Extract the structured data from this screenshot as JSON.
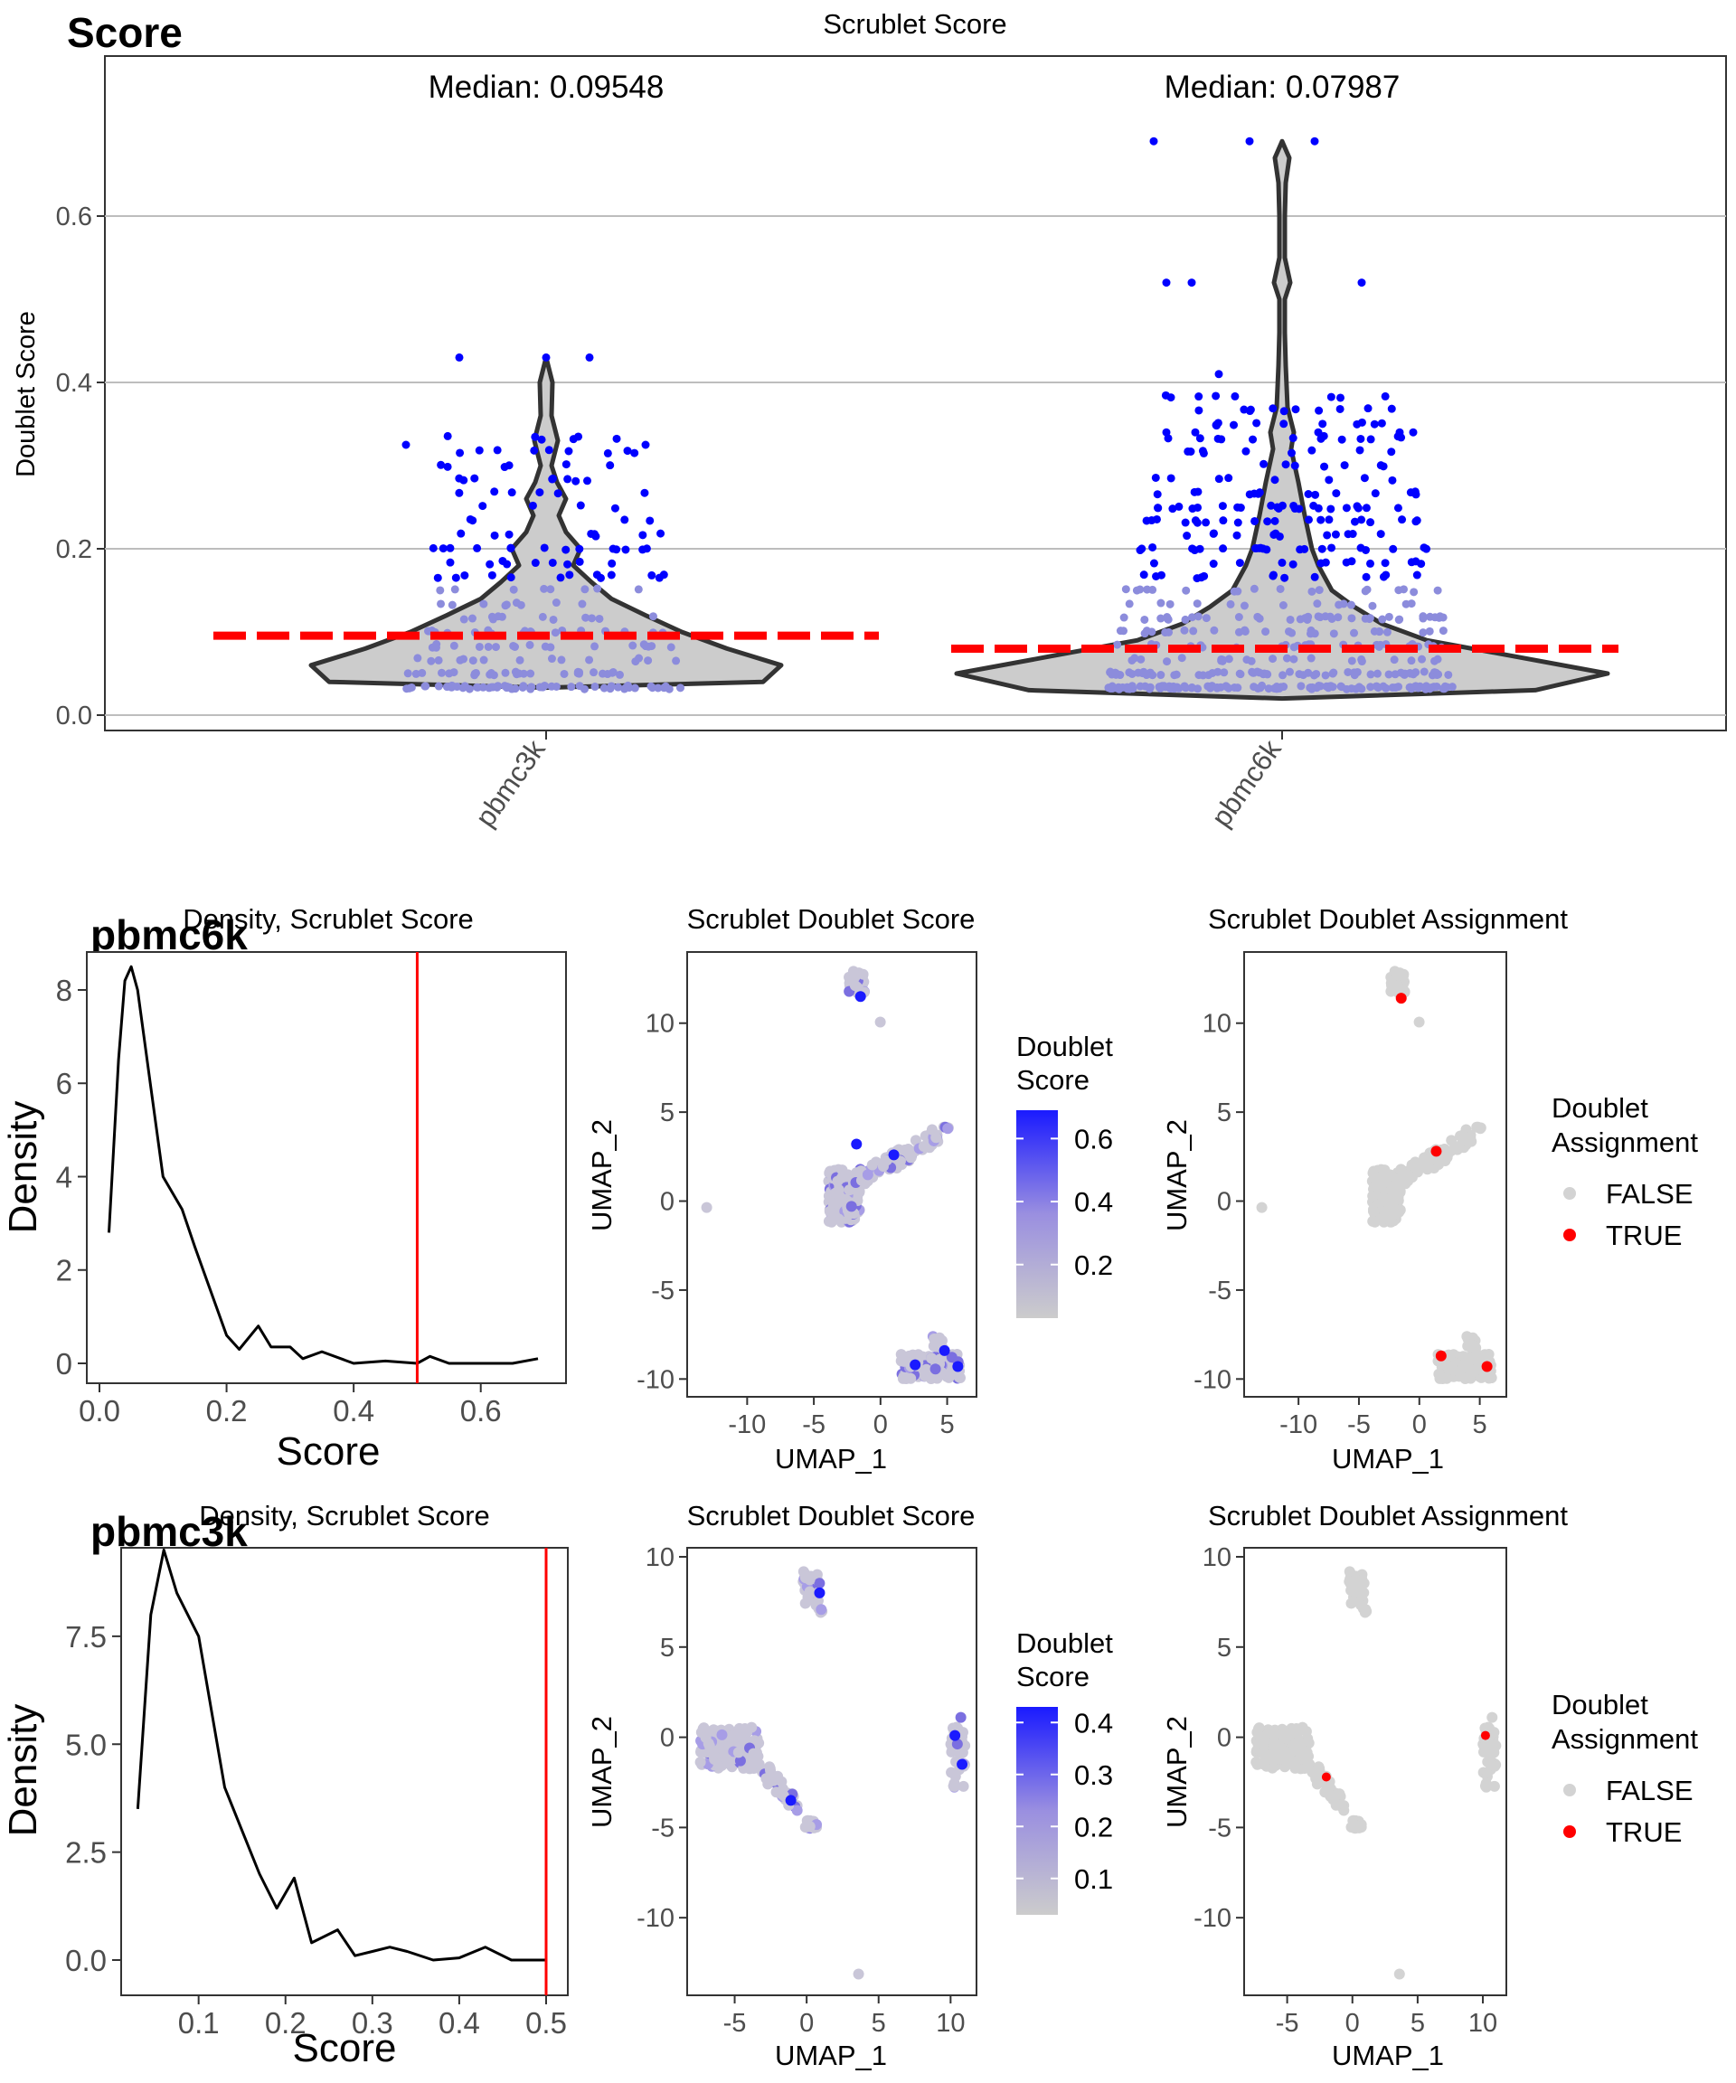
{
  "violin": {
    "tag": "Score",
    "title": "Scrublet Score",
    "ylabel": "Doublet Score",
    "ylim": [
      0,
      0.7
    ],
    "yticks": [
      "0.0",
      "0.2",
      "0.4",
      "0.6"
    ],
    "ytick_values": [
      0.0,
      0.2,
      0.4,
      0.6
    ],
    "groups": [
      "pbmc3k",
      "pbmc6k"
    ],
    "medians": [
      0.09548,
      0.07987
    ],
    "median_labels": [
      "Median: 0.09548",
      "Median: 0.07987"
    ],
    "max_values": [
      0.43,
      0.69
    ]
  },
  "rows": [
    {
      "tag": "pbmc6k",
      "density": {
        "title": "Density, Scrublet Score",
        "xlabel": "Score",
        "ylabel": "Density",
        "xticks": [
          "0.0",
          "0.2",
          "0.4",
          "0.6"
        ],
        "xtick_values": [
          0.0,
          0.2,
          0.4,
          0.6
        ],
        "yticks": [
          "0",
          "2",
          "4",
          "6",
          "8"
        ],
        "ytick_values": [
          0,
          2,
          4,
          6,
          8
        ],
        "threshold": 0.5
      },
      "umap_score": {
        "title": "Scrublet Doublet Score",
        "xlabel": "UMAP_1",
        "ylabel": "UMAP_2",
        "xticks": [
          "-10",
          "-5",
          "0",
          "5"
        ],
        "yticks": [
          "-10",
          "-5",
          "0",
          "5",
          "10"
        ],
        "legend_title_1": "Doublet",
        "legend_title_2": "Score",
        "legend_ticks": [
          "0.6",
          "0.4",
          "0.2"
        ]
      },
      "umap_assign": {
        "title": "Scrublet Doublet Assignment",
        "xlabel": "UMAP_1",
        "ylabel": "UMAP_2",
        "xticks": [
          "-10",
          "-5",
          "0",
          "5"
        ],
        "yticks": [
          "-10",
          "-5",
          "0",
          "5",
          "10"
        ],
        "legend_title_1": "Doublet",
        "legend_title_2": "Assignment",
        "legend_items": [
          "FALSE",
          "TRUE"
        ]
      }
    },
    {
      "tag": "pbmc3k",
      "density": {
        "title": "Density, Scrublet Score",
        "xlabel": "Score",
        "ylabel": "Density",
        "xticks": [
          "0.1",
          "0.2",
          "0.3",
          "0.4",
          "0.5"
        ],
        "xtick_values": [
          0.1,
          0.2,
          0.3,
          0.4,
          0.5
        ],
        "yticks": [
          "0.0",
          "2.5",
          "5.0",
          "7.5"
        ],
        "ytick_values": [
          0,
          2.5,
          5.0,
          7.5
        ],
        "threshold": 0.5
      },
      "umap_score": {
        "title": "Scrublet Doublet Score",
        "xlabel": "UMAP_1",
        "ylabel": "UMAP_2",
        "xticks": [
          "-5",
          "0",
          "5",
          "10"
        ],
        "yticks": [
          "-10",
          "-5",
          "0",
          "5",
          "10"
        ],
        "legend_title_1": "Doublet",
        "legend_title_2": "Score",
        "legend_ticks": [
          "0.4",
          "0.3",
          "0.2",
          "0.1"
        ]
      },
      "umap_assign": {
        "title": "Scrublet Doublet Assignment",
        "xlabel": "UMAP_1",
        "ylabel": "UMAP_2",
        "xticks": [
          "-5",
          "0",
          "5",
          "10"
        ],
        "yticks": [
          "-10",
          "-5",
          "0",
          "5",
          "10"
        ],
        "legend_title_1": "Doublet",
        "legend_title_2": "Assignment",
        "legend_items": [
          "FALSE",
          "TRUE"
        ]
      }
    }
  ],
  "colors": {
    "violin_fill": "#cccccc",
    "violin_stroke": "#333333",
    "median_line": "#ff0000",
    "high_point": "#0000ff",
    "low_point": "#8c8cdc",
    "gradient_high": "#1a1aff",
    "gradient_low": "#cccccc",
    "true_color": "#ff0000",
    "false_color": "#d3d3d3",
    "threshold_line": "#ff0000"
  },
  "chart_data": [
    {
      "type": "violin",
      "title": "Scrublet Score",
      "ylabel": "Doublet Score",
      "categories": [
        "pbmc3k",
        "pbmc6k"
      ],
      "medians": [
        0.09548,
        0.07987
      ],
      "ylim": [
        0,
        0.7
      ],
      "grid": true
    },
    {
      "type": "line",
      "title": "Density, Scrublet Score",
      "xlabel": "Score",
      "ylabel": "Density",
      "x": [
        0.015,
        0.03,
        0.04,
        0.05,
        0.06,
        0.08,
        0.1,
        0.13,
        0.15,
        0.2,
        0.22,
        0.25,
        0.27,
        0.3,
        0.32,
        0.35,
        0.4,
        0.45,
        0.5,
        0.52,
        0.55,
        0.6,
        0.65,
        0.69
      ],
      "y": [
        2.8,
        6.5,
        8.2,
        8.5,
        8.0,
        6.0,
        4.0,
        3.3,
        2.5,
        0.6,
        0.3,
        0.8,
        0.35,
        0.35,
        0.1,
        0.25,
        0.0,
        0.05,
        0.0,
        0.15,
        0.0,
        0.0,
        0.0,
        0.1
      ],
      "threshold": 0.5,
      "xlim": [
        0.0,
        0.7
      ],
      "ylim": [
        0,
        8.5
      ]
    },
    {
      "type": "line",
      "title": "Density, Scrublet Score",
      "xlabel": "Score",
      "ylabel": "Density",
      "x": [
        0.03,
        0.045,
        0.06,
        0.075,
        0.1,
        0.13,
        0.15,
        0.17,
        0.19,
        0.21,
        0.23,
        0.25,
        0.26,
        0.28,
        0.3,
        0.32,
        0.34,
        0.37,
        0.4,
        0.43,
        0.46,
        0.5
      ],
      "y": [
        3.5,
        8.0,
        9.5,
        8.5,
        7.5,
        4.0,
        3.0,
        2.0,
        1.2,
        1.9,
        0.4,
        0.6,
        0.7,
        0.1,
        0.2,
        0.3,
        0.2,
        0.0,
        0.05,
        0.3,
        0.0,
        0.0
      ],
      "threshold": 0.5,
      "xlim": [
        0.03,
        0.5
      ],
      "ylim": [
        0,
        9.5
      ]
    },
    {
      "type": "scatter",
      "title": "Scrublet Doublet Score",
      "xlabel": "UMAP_1",
      "ylabel": "UMAP_2",
      "xlim": [
        -13.5,
        6.5
      ],
      "ylim": [
        -10.5,
        13
      ],
      "clusters": [
        {
          "cx": -1.8,
          "cy": 12.3
        },
        {
          "cx": -2.5,
          "cy": 0.5
        },
        {
          "cx": 1.5,
          "cy": 2.5
        },
        {
          "cx": 3.7,
          "cy": -9.2
        },
        {
          "cx": -13.0,
          "cy": -0.4
        },
        {
          "cx": 0.0,
          "cy": 10.1
        }
      ]
    },
    {
      "type": "scatter",
      "title": "Scrublet Doublet Assignment",
      "xlabel": "UMAP_1",
      "ylabel": "UMAP_2",
      "series": [
        {
          "name": "FALSE"
        },
        {
          "name": "TRUE"
        }
      ]
    },
    {
      "type": "scatter",
      "title": "Scrublet Doublet Score",
      "xlabel": "UMAP_1",
      "ylabel": "UMAP_2",
      "xlim": [
        -8.0,
        11.5
      ],
      "ylim": [
        -14,
        10.5
      ],
      "clusters": [
        {
          "cx": 0.3,
          "cy": 8.2
        },
        {
          "cx": -5.5,
          "cy": -0.7
        },
        {
          "cx": -1.5,
          "cy": -3.5
        },
        {
          "cx": 10.5,
          "cy": -1.5
        },
        {
          "cx": 3.6,
          "cy": -13.1
        }
      ]
    },
    {
      "type": "scatter",
      "title": "Scrublet Doublet Assignment",
      "xlabel": "UMAP_1",
      "ylabel": "UMAP_2",
      "series": [
        {
          "name": "FALSE"
        },
        {
          "name": "TRUE"
        }
      ]
    }
  ]
}
